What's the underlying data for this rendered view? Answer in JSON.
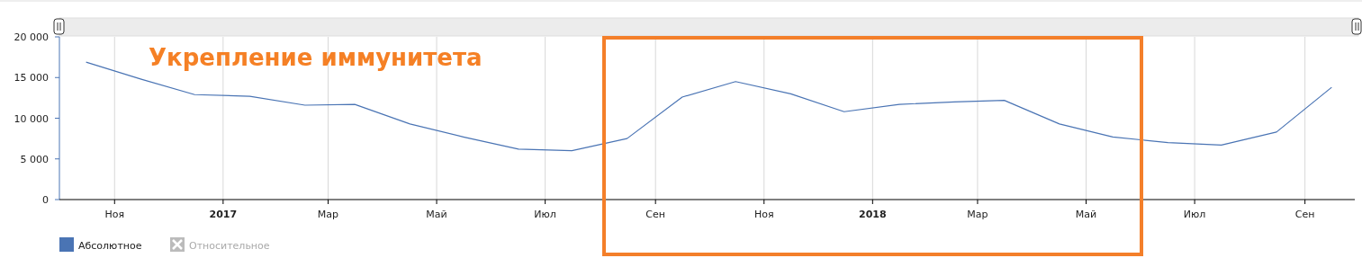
{
  "chart_data": {
    "type": "line",
    "title": "Укрепление иммунитета",
    "x": [
      "2016-10-16",
      "2016-11-16",
      "2016-12-16",
      "2017-01-16",
      "2017-02-16",
      "2017-03-16",
      "2017-04-16",
      "2017-05-16",
      "2017-06-16",
      "2017-07-16",
      "2017-08-16",
      "2017-09-16",
      "2017-10-16",
      "2017-11-16",
      "2017-12-16",
      "2018-01-16",
      "2018-02-16",
      "2018-03-16",
      "2018-04-16",
      "2018-05-16",
      "2018-06-16",
      "2018-07-16",
      "2018-08-16",
      "2018-09-16"
    ],
    "series": [
      {
        "name": "Абсолютное",
        "color": "#4a74b4",
        "values": [
          16900,
          14800,
          12900,
          12700,
          11600,
          11700,
          9300,
          7700,
          6200,
          6000,
          7500,
          12600,
          14500,
          13000,
          10800,
          11700,
          12000,
          12200,
          9300,
          7700,
          7000,
          6700,
          8300,
          13800
        ]
      }
    ],
    "annotations": [
      "Относительное"
    ],
    "xlim": [
      "2016-10-01",
      "2018-09-29"
    ],
    "xticks": [
      {
        "value": "2016-11-01",
        "label": "Ноя"
      },
      {
        "value": "2017-01-01",
        "label": "2017"
      },
      {
        "value": "2017-03-01",
        "label": "Мар"
      },
      {
        "value": "2017-05-01",
        "label": "Май"
      },
      {
        "value": "2017-07-01",
        "label": "Июл"
      },
      {
        "value": "2017-09-01",
        "label": "Сен"
      },
      {
        "value": "2017-11-01",
        "label": "Ноя"
      },
      {
        "value": "2018-01-01",
        "label": "2018"
      },
      {
        "value": "2018-03-01",
        "label": "Мар"
      },
      {
        "value": "2018-05-01",
        "label": "Май"
      },
      {
        "value": "2018-07-01",
        "label": "Июл"
      },
      {
        "value": "2018-09-01",
        "label": "Сен"
      }
    ],
    "ylim": [
      0,
      20000
    ],
    "yticks": [
      0,
      {
        "value": 5000,
        "label": "5 000"
      },
      {
        "value": 10000,
        "label": "10 000"
      },
      {
        "value": 15000,
        "label": "15 000"
      },
      {
        "value": 20000,
        "label": "20 000"
      }
    ],
    "grid": "x",
    "legend": "bottom left",
    "marker": "none",
    "line_style": "solid"
  }
}
